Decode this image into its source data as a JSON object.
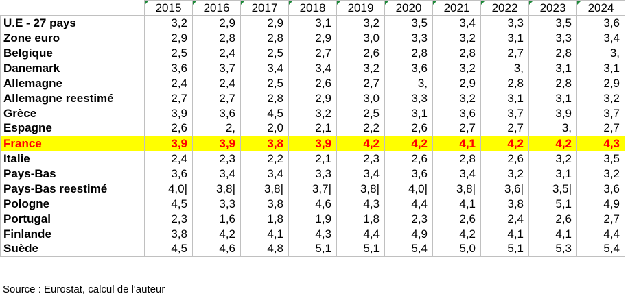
{
  "years": [
    "2015",
    "2016",
    "2017",
    "2018",
    "2019",
    "2020",
    "2021",
    "2022",
    "2023",
    "2024"
  ],
  "highlight_color": "#ffff00",
  "highlight_text_color": "#ff0000",
  "rows": [
    {
      "label": "U.E - 27 pays",
      "values": [
        "3,2",
        "2,9",
        "2,9",
        "3,1",
        "3,2",
        "3,5",
        "3,4",
        "3,3",
        "3,5",
        "3,6"
      ],
      "highlight": false
    },
    {
      "label": "Zone euro",
      "values": [
        "2,9",
        "2,8",
        "2,8",
        "2,9",
        "3,0",
        "3,3",
        "3,2",
        "3,1",
        "3,3",
        "3,4"
      ],
      "highlight": false
    },
    {
      "label": "Belgique",
      "values": [
        "2,5",
        "2,4",
        "2,5",
        "2,7",
        "2,6",
        "2,8",
        "2,8",
        "2,7",
        "2,8",
        "3,"
      ],
      "highlight": false
    },
    {
      "label": "Danemark",
      "values": [
        "3,6",
        "3,7",
        "3,4",
        "3,4",
        "3,2",
        "3,6",
        "3,2",
        "3,",
        "3,1",
        "3,1"
      ],
      "highlight": false
    },
    {
      "label": "Allemagne",
      "values": [
        "2,4",
        "2,4",
        "2,5",
        "2,6",
        "2,7",
        "3,",
        "2,9",
        "2,8",
        "2,8",
        "2,9"
      ],
      "highlight": false
    },
    {
      "label": "Allemagne reestimé",
      "values": [
        "2,7",
        "2,7",
        "2,8",
        "2,9",
        "3,0",
        "3,3",
        "3,2",
        "3,1",
        "3,1",
        "3,2"
      ],
      "highlight": false
    },
    {
      "label": "Grèce",
      "values": [
        "3,9",
        "3,6",
        "4,5",
        "3,2",
        "2,5",
        "3,1",
        "3,6",
        "3,7",
        "3,9",
        "3,7"
      ],
      "highlight": false
    },
    {
      "label": "Espagne",
      "values": [
        "2,6",
        "2,",
        "2,0",
        "2,1",
        "2,2",
        "2,6",
        "2,7",
        "2,7",
        "3,",
        "2,7"
      ],
      "highlight": false
    },
    {
      "label": "France",
      "values": [
        "3,9",
        "3,9",
        "3,8",
        "3,9",
        "4,2",
        "4,2",
        "4,1",
        "4,2",
        "4,2",
        "4,3"
      ],
      "highlight": true
    },
    {
      "label": "Italie",
      "values": [
        "2,4",
        "2,3",
        "2,2",
        "2,1",
        "2,3",
        "2,6",
        "2,8",
        "2,6",
        "3,2",
        "3,5"
      ],
      "highlight": false
    },
    {
      "label": "Pays-Bas",
      "values": [
        "3,6",
        "3,4",
        "3,4",
        "3,3",
        "3,4",
        "3,6",
        "3,4",
        "3,2",
        "3,1",
        "3,2"
      ],
      "highlight": false
    },
    {
      "label": "Pays-Bas reestimé",
      "values": [
        "4,0|",
        "3,8|",
        "3,8|",
        "3,7|",
        "3,8|",
        "4,0|",
        "3,8|",
        "3,6|",
        "3,5|",
        "3,6"
      ],
      "highlight": false
    },
    {
      "label": "Pologne",
      "values": [
        "4,5",
        "3,3",
        "3,8",
        "4,6",
        "4,3",
        "4,4",
        "4,1",
        "3,8",
        "5,1",
        "4,9"
      ],
      "highlight": false
    },
    {
      "label": "Portugal",
      "values": [
        "2,3",
        "1,6",
        "1,8",
        "1,9",
        "1,8",
        "2,3",
        "2,6",
        "2,4",
        "2,6",
        "2,7"
      ],
      "highlight": false
    },
    {
      "label": "Finlande",
      "values": [
        "3,8",
        "4,2",
        "4,1",
        "4,3",
        "4,4",
        "4,9",
        "4,2",
        "4,1",
        "4,1",
        "4,4"
      ],
      "highlight": false
    },
    {
      "label": "Suède",
      "values": [
        "4,5",
        "4,6",
        "4,8",
        "5,1",
        "5,1",
        "5,4",
        "5,0",
        "5,1",
        "5,3",
        "5,4"
      ],
      "highlight": false
    }
  ],
  "source": "Source : Eurostat, calcul de l'auteur"
}
